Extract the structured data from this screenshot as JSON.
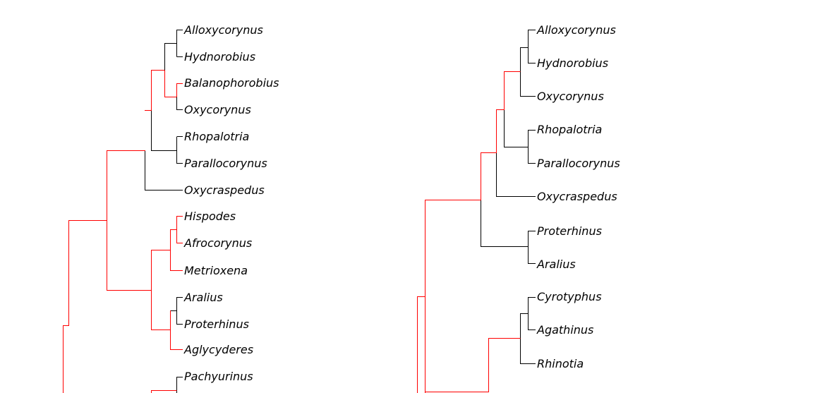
{
  "colors": {
    "highlight": "#ff0000",
    "default": "#000000",
    "background": "#ffffff"
  },
  "left_tree": {
    "taxa": [
      "Alloxycorynus",
      "Hydnorobius",
      "Balanophorobius",
      "Oxycorynus",
      "Rhopalotria",
      "Parallocorynus",
      "Oxycraspedus",
      "Hispodes",
      "Afrocorynus",
      "Metrioxena",
      "Aralius",
      "Proterhinus",
      "Aglycyderes",
      "Pachyurinus"
    ]
  },
  "right_tree": {
    "taxa": [
      "Alloxycorynus",
      "Hydnorobius",
      "Oxycorynus",
      "Rhopalotria",
      "Parallocorynus",
      "Oxycraspedus",
      "Proterhinus",
      "Aralius",
      "Cyrotyphus",
      "Agathinus",
      "Rhinotia"
    ]
  }
}
